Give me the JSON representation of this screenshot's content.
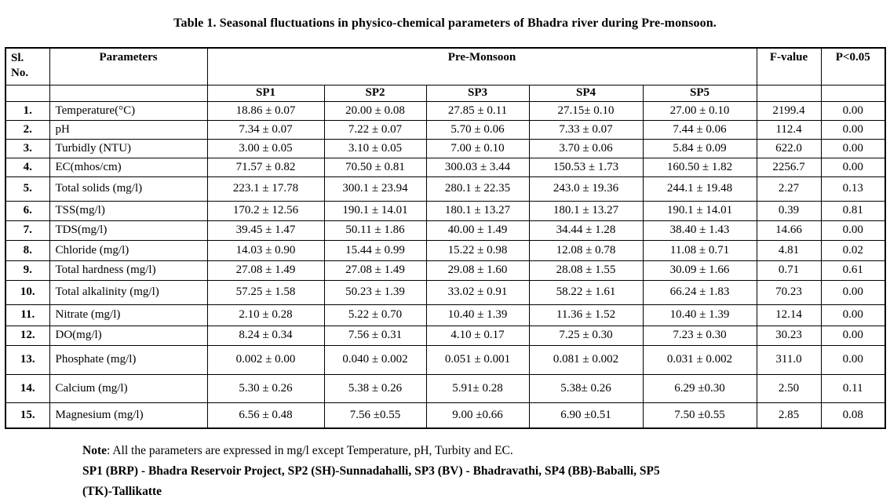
{
  "page": {
    "title": "Table 1. Seasonal fluctuations in physico-chemical parameters of Bhadra river during Pre-monsoon."
  },
  "table": {
    "header": {
      "sl_no": "Sl.\nNo.",
      "parameters": "Parameters",
      "season": "Pre-Monsoon",
      "f_value": "F-value",
      "p_value": "P<0.05",
      "stations": [
        "SP1",
        "SP2",
        "SP3",
        "SP4",
        "SP5"
      ]
    },
    "rows": [
      {
        "no": "1.",
        "param": "Temperature(°C)",
        "sp1": "18.86 ± 0.07",
        "sp2": "20.00 ± 0.08",
        "sp3": "27.85 ± 0.11",
        "sp4": "27.15± 0.10",
        "sp5": "27.00 ± 0.10",
        "f": "2199.4",
        "p": "0.00"
      },
      {
        "no": "2.",
        "param": "pH",
        "sp1": "7.34 ± 0.07",
        "sp2": "7.22 ± 0.07",
        "sp3": "5.70 ± 0.06",
        "sp4": "7.33 ± 0.07",
        "sp5": "7.44 ± 0.06",
        "f": "112.4",
        "p": "0.00"
      },
      {
        "no": "3.",
        "param": "Turbidly (NTU)",
        "sp1": "3.00 ± 0.05",
        "sp2": "3.10 ± 0.05",
        "sp3": "7.00 ± 0.10",
        "sp4": "3.70 ± 0.06",
        "sp5": "5.84 ± 0.09",
        "f": "622.0",
        "p": "0.00"
      },
      {
        "no": "4.",
        "param": "EC(mhos/cm)",
        "sp1": "71.57 ± 0.82",
        "sp2": "70.50 ± 0.81",
        "sp3": "300.03 ± 3.44",
        "sp4": "150.53 ± 1.73",
        "sp5": "160.50 ± 1.82",
        "f": "2256.7",
        "p": "0.00"
      },
      {
        "no": "5.",
        "param": "Total solids (mg/l)",
        "sp1": "223.1 ± 17.78",
        "sp2": "300.1 ± 23.94",
        "sp3": "280.1 ± 22.35",
        "sp4": "243.0 ± 19.36",
        "sp5": "244.1 ± 19.48",
        "f": "2.27",
        "p": "0.13"
      },
      {
        "no": "6.",
        "param": "TSS(mg/l)",
        "sp1": "170.2 ± 12.56",
        "sp2": "190.1 ± 14.01",
        "sp3": "180.1 ± 13.27",
        "sp4": "180.1 ± 13.27",
        "sp5": "190.1 ± 14.01",
        "f": "0.39",
        "p": "0.81"
      },
      {
        "no": "7.",
        "param": "TDS(mg/l)",
        "sp1": "39.45 ± 1.47",
        "sp2": "50.11 ± 1.86",
        "sp3": "40.00 ± 1.49",
        "sp4": "34.44 ± 1.28",
        "sp5": "38.40 ± 1.43",
        "f": "14.66",
        "p": "0.00"
      },
      {
        "no": "8.",
        "param": "Chloride (mg/l)",
        "sp1": "14.03 ± 0.90",
        "sp2": "15.44 ± 0.99",
        "sp3": "15.22 ± 0.98",
        "sp4": "12.08 ± 0.78",
        "sp5": "11.08 ± 0.71",
        "f": "4.81",
        "p": "0.02"
      },
      {
        "no": "9.",
        "param": "Total hardness (mg/l)",
        "sp1": "27.08 ± 1.49",
        "sp2": "27.08 ± 1.49",
        "sp3": "29.08 ± 1.60",
        "sp4": "28.08 ± 1.55",
        "sp5": "30.09 ± 1.66",
        "f": "0.71",
        "p": "0.61"
      },
      {
        "no": "10.",
        "param": "Total alkalinity (mg/l)",
        "sp1": "57.25 ± 1.58",
        "sp2": "50.23 ± 1.39",
        "sp3": "33.02 ± 0.91",
        "sp4": "58.22 ± 1.61",
        "sp5": "66.24 ± 1.83",
        "f": "70.23",
        "p": "0.00"
      },
      {
        "no": "11.",
        "param": "Nitrate  (mg/l)",
        "sp1": "2.10 ± 0.28",
        "sp2": "5.22 ± 0.70",
        "sp3": "10.40 ± 1.39",
        "sp4": "11.36 ± 1.52",
        "sp5": "10.40 ± 1.39",
        "f": "12.14",
        "p": "0.00"
      },
      {
        "no": "12.",
        "param": "DO(mg/l)",
        "sp1": "8.24 ± 0.34",
        "sp2": "7.56 ± 0.31",
        "sp3": "4.10 ± 0.17",
        "sp4": "7.25 ± 0.30",
        "sp5": "7.23 ± 0.30",
        "f": "30.23",
        "p": "0.00"
      },
      {
        "no": "13.",
        "param": "Phosphate  (mg/l)",
        "sp1": "0.002 ± 0.00",
        "sp2": "0.040 ± 0.002",
        "sp3": "0.051 ± 0.001",
        "sp4": "0.081 ± 0.002",
        "sp5": "0.031 ± 0.002",
        "f": "311.0",
        "p": "0.00"
      },
      {
        "no": "14.",
        "param": "Calcium  (mg/l)",
        "sp1": "5.30 ± 0.26",
        "sp2": "5.38 ± 0.26",
        "sp3": "5.91± 0.28",
        "sp4": "5.38± 0.26",
        "sp5": "6.29 ±0.30",
        "f": "2.50",
        "p": "0.11"
      },
      {
        "no": "15.",
        "param": "Magnesium (mg/l)",
        "sp1": "6.56 ± 0.48",
        "sp2": "7.56 ±0.55",
        "sp3": "9.00 ±0.66",
        "sp4": "6.90 ±0.51",
        "sp5": "7.50 ±0.55",
        "f": "2.85",
        "p": "0.08"
      }
    ]
  },
  "note": {
    "label": "Note",
    "text": ": All the parameters are expressed in mg/l except Temperature, pH, Turbity and EC.",
    "stations_bold": "SP1 (BRP) - Bhadra Reservoir Project, SP2 (SH)-Sunnadahalli, SP3 (BV) - Bhadravathi, SP4 (BB)-Baballi, SP5\n(TK)-Tallikatte"
  }
}
